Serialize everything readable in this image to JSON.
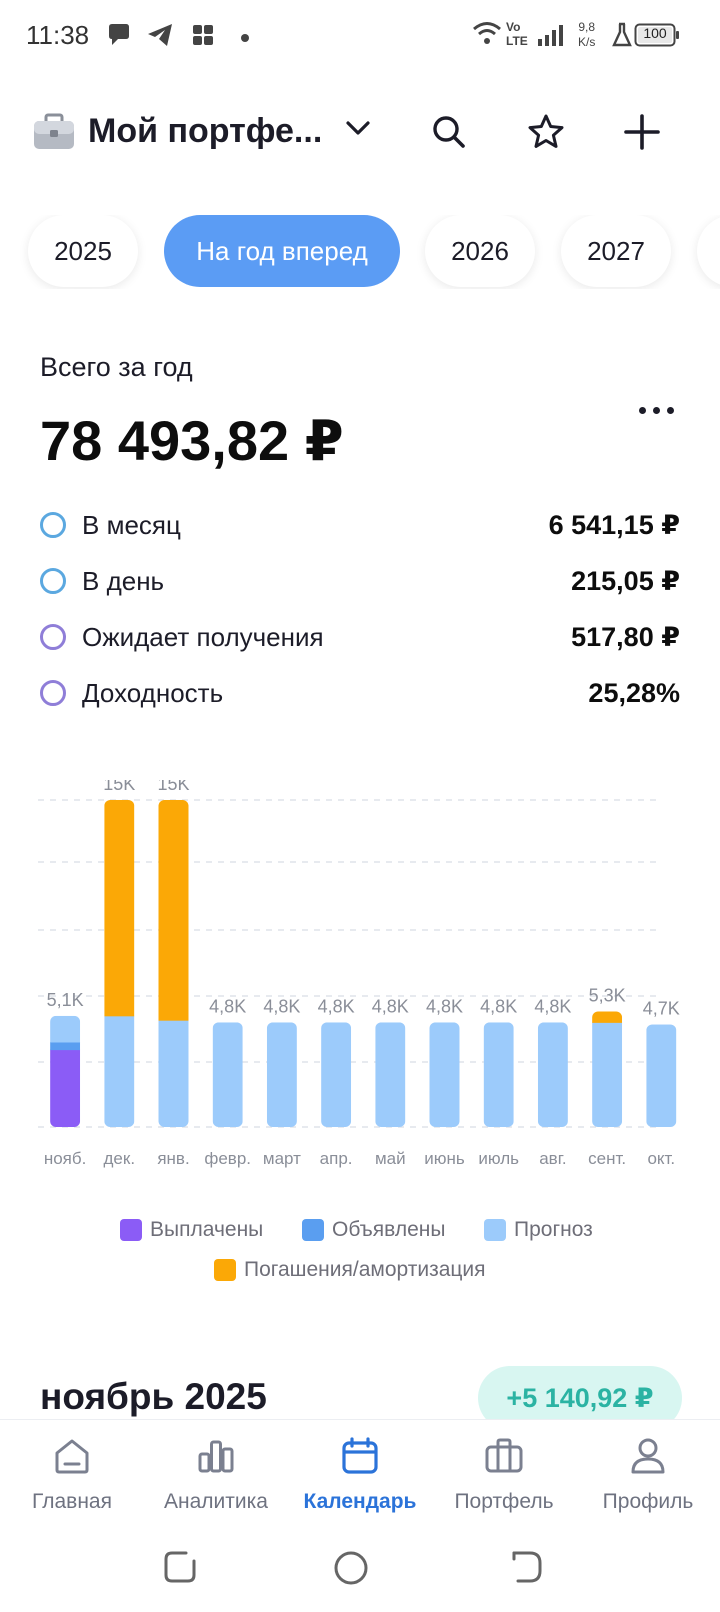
{
  "status_bar": {
    "time": "11:38",
    "speed_value": "9,8",
    "speed_unit": "K/s",
    "volte_top": "Vo",
    "volte_bottom": "LTE",
    "battery": "100"
  },
  "header": {
    "title": "Мой портфе...",
    "icons": [
      "briefcase-icon",
      "chevron-down-icon",
      "search-icon",
      "star-icon",
      "plus-icon"
    ]
  },
  "period_chips": [
    {
      "label": "2025",
      "active": false
    },
    {
      "label": "На год вперед",
      "active": true
    },
    {
      "label": "2026",
      "active": false
    },
    {
      "label": "2027",
      "active": false
    }
  ],
  "summary": {
    "total_label": "Всего за год",
    "total_value": "78 493,82 ₽",
    "rows": [
      {
        "label": "В месяц",
        "value": "6 541,15 ₽"
      },
      {
        "label": "В день",
        "value": "215,05 ₽"
      },
      {
        "label": "Ожидает получения",
        "value": "517,80 ₽"
      },
      {
        "label": "Доходность",
        "value": "25,28%"
      }
    ]
  },
  "colors": {
    "paid": "#8b5cf6",
    "announced": "#5a9ef0",
    "forecast": "#9ccbfb",
    "redemption": "#fba806",
    "accent": "#2b73d9",
    "chip_active": "#5b9cf4",
    "badge_text": "#2bb3a3"
  },
  "chart_data": {
    "type": "bar",
    "stacked": true,
    "categories": [
      "нояб.",
      "дек.",
      "янв.",
      "февр.",
      "март",
      "апр.",
      "май",
      "июнь",
      "июль",
      "авг.",
      "сент.",
      "окт."
    ],
    "bar_labels": [
      "5,1K",
      "15K",
      "15K",
      "4,8K",
      "4,8K",
      "4,8K",
      "4,8K",
      "4,8K",
      "4,8K",
      "4,8K",
      "5,3K",
      "4,7K"
    ],
    "series": [
      {
        "name": "Выплачены",
        "values": [
          3550,
          0,
          0,
          0,
          0,
          0,
          0,
          0,
          0,
          0,
          0,
          0
        ]
      },
      {
        "name": "Объявлены",
        "values": [
          350,
          0,
          0,
          0,
          0,
          0,
          0,
          0,
          0,
          0,
          0,
          0
        ]
      },
      {
        "name": "Прогноз",
        "values": [
          1200,
          5100,
          4900,
          4800,
          4800,
          4800,
          4800,
          4800,
          4800,
          4800,
          4800,
          4700
        ]
      },
      {
        "name": "Погашения/амортизация",
        "values": [
          0,
          9900,
          10100,
          0,
          0,
          0,
          0,
          0,
          0,
          0,
          500,
          0
        ]
      }
    ],
    "ylim": [
      0,
      15000
    ],
    "grid": true,
    "legend": "bottom"
  },
  "month_section": {
    "title": "ноябрь 2025",
    "badge": "+5 140,92 ₽"
  },
  "bottom_nav": [
    {
      "label": "Главная",
      "icon": "home-icon",
      "active": false
    },
    {
      "label": "Аналитика",
      "icon": "analytics-icon",
      "active": false
    },
    {
      "label": "Календарь",
      "icon": "calendar-icon",
      "active": true
    },
    {
      "label": "Портфель",
      "icon": "portfolio-icon",
      "active": false
    },
    {
      "label": "Профиль",
      "icon": "profile-icon",
      "active": false
    }
  ],
  "system_nav": [
    "recents-icon",
    "home-circle-icon",
    "back-icon"
  ]
}
